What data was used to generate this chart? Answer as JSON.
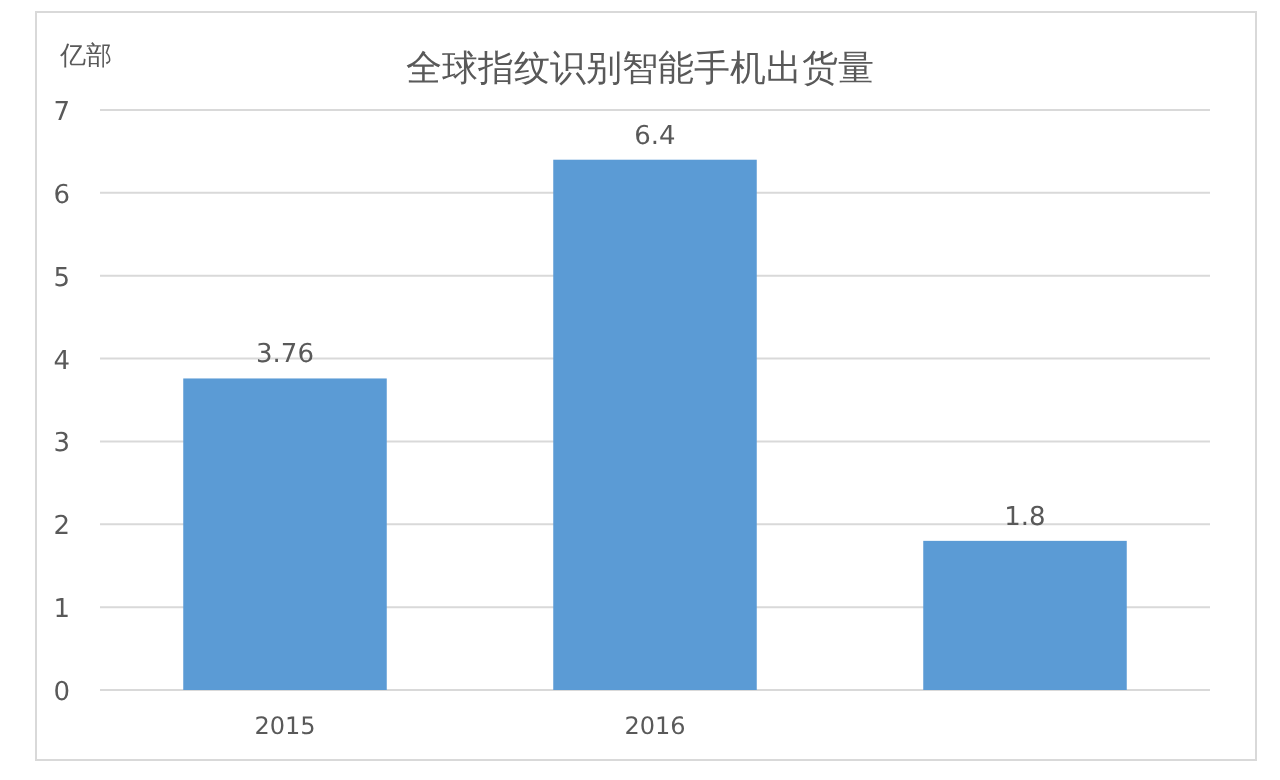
{
  "chart_data": {
    "type": "bar",
    "title": "全球指纹识别智能手机出货量",
    "ylabel": "亿部",
    "categories": [
      "2015",
      "2016",
      null
    ],
    "values": [
      3.76,
      6.4,
      1.8
    ],
    "color": "#5b9bd5",
    "ylim": [
      0,
      7
    ],
    "yticks": [
      0,
      1,
      2,
      3,
      4,
      5,
      6,
      7
    ],
    "grid": "y",
    "data_labels": true
  }
}
